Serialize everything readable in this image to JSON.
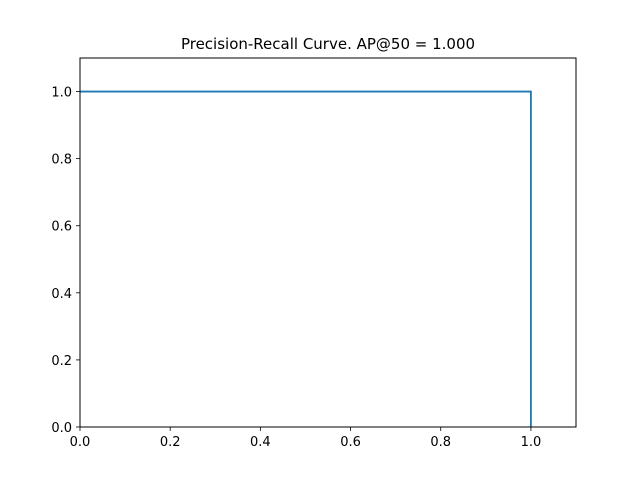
{
  "chart_data": {
    "type": "line",
    "title": "Precision-Recall Curve. AP@50 = 1.000",
    "xlabel": "",
    "ylabel": "",
    "xlim": [
      0,
      1.1
    ],
    "ylim": [
      0,
      1.1
    ],
    "x_ticks": [
      "0.0",
      "0.2",
      "0.4",
      "0.6",
      "0.8",
      "1.0"
    ],
    "y_ticks": [
      "0.0",
      "0.2",
      "0.4",
      "0.6",
      "0.8",
      "1.0"
    ],
    "grid": false,
    "series": [
      {
        "color": "#1f77b4",
        "points": [
          [
            0.0,
            1.0
          ],
          [
            1.0,
            1.0
          ],
          [
            1.0,
            0.0
          ]
        ]
      }
    ]
  }
}
